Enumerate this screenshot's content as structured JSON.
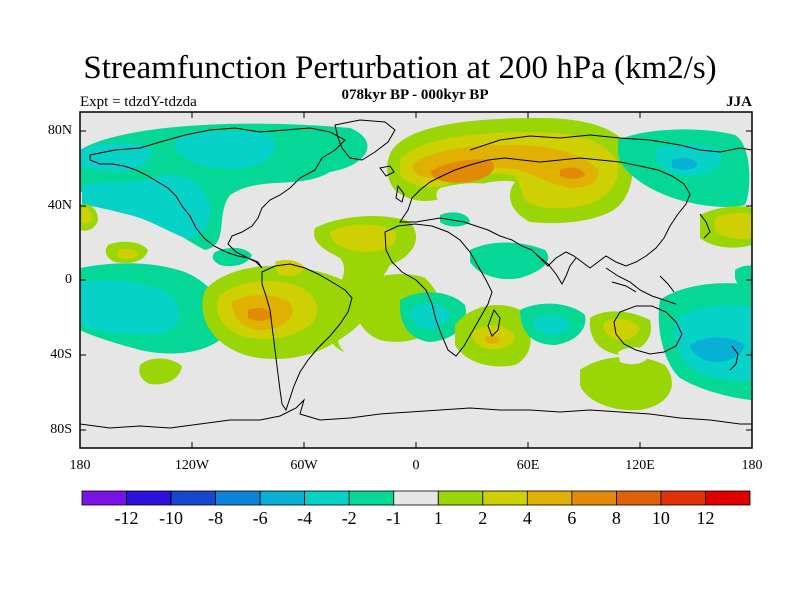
{
  "title": "Streamfunction Perturbation at 200 hPa (km2/s)",
  "subtitle": "078kyr BP - 000kyr BP",
  "experiment_label": "Expt = tdzdY-tdzda",
  "season_label": "JJA",
  "map": {
    "projection": "cylindrical equidistant",
    "lat_labels": [
      "80N",
      "40N",
      "0",
      "40S",
      "80S"
    ],
    "lon_labels": [
      "180",
      "120W",
      "60W",
      "0",
      "60E",
      "120E",
      "180"
    ]
  },
  "colorbar": {
    "labels": [
      "-12",
      "-10",
      "-8",
      "-6",
      "-4",
      "-2",
      "-1",
      "1",
      "2",
      "4",
      "6",
      "8",
      "10",
      "12"
    ],
    "colors": [
      "#7a14e6",
      "#2a10d9",
      "#1846cc",
      "#0c82d9",
      "#09b0d6",
      "#06d2c8",
      "#05d896",
      "#e6e6e6",
      "#9ad605",
      "#cfd004",
      "#e0b002",
      "#e28a05",
      "#e06206",
      "#e03008",
      "#e00000"
    ]
  },
  "colors": {
    "land_outline": "#000000",
    "background_field": "#e6e6e6"
  }
}
